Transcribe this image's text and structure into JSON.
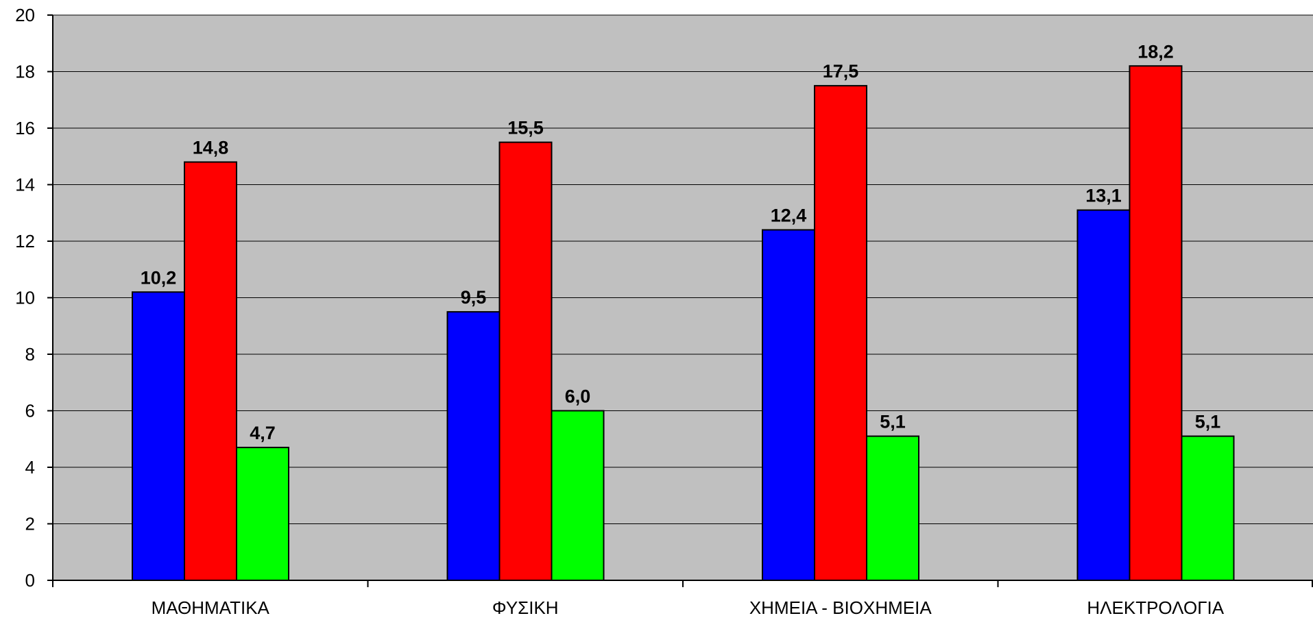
{
  "chart_data": {
    "type": "bar",
    "title": "",
    "xlabel": "",
    "ylabel": "",
    "categories": [
      "ΜΑΘΗΜΑΤΙΚΑ",
      "ΦΥΣΙΚΗ",
      "ΧΗΜΕΙΑ - ΒΙΟΧΗΜΕΙΑ",
      "ΗΛΕΚΤΡΟΛΟΓΙΑ"
    ],
    "series": [
      {
        "color": "#0000ff",
        "values": [
          10.2,
          9.5,
          12.4,
          13.1
        ],
        "labels": [
          "10,2",
          "9,5",
          "12,4",
          "13,1"
        ]
      },
      {
        "color": "#ff0000",
        "values": [
          14.8,
          15.5,
          17.5,
          18.2
        ],
        "labels": [
          "14,8",
          "15,5",
          "17,5",
          "18,2"
        ]
      },
      {
        "color": "#00ff00",
        "values": [
          4.7,
          6.0,
          5.1,
          5.1
        ],
        "labels": [
          "4,7",
          "6,0",
          "5,1",
          "5,1"
        ]
      }
    ],
    "ylim": [
      0,
      20
    ],
    "yticks": [
      0,
      2,
      4,
      6,
      8,
      10,
      12,
      14,
      16,
      18,
      20
    ],
    "grid": true,
    "plot_background": "#c0c0c0",
    "legend": "none"
  }
}
